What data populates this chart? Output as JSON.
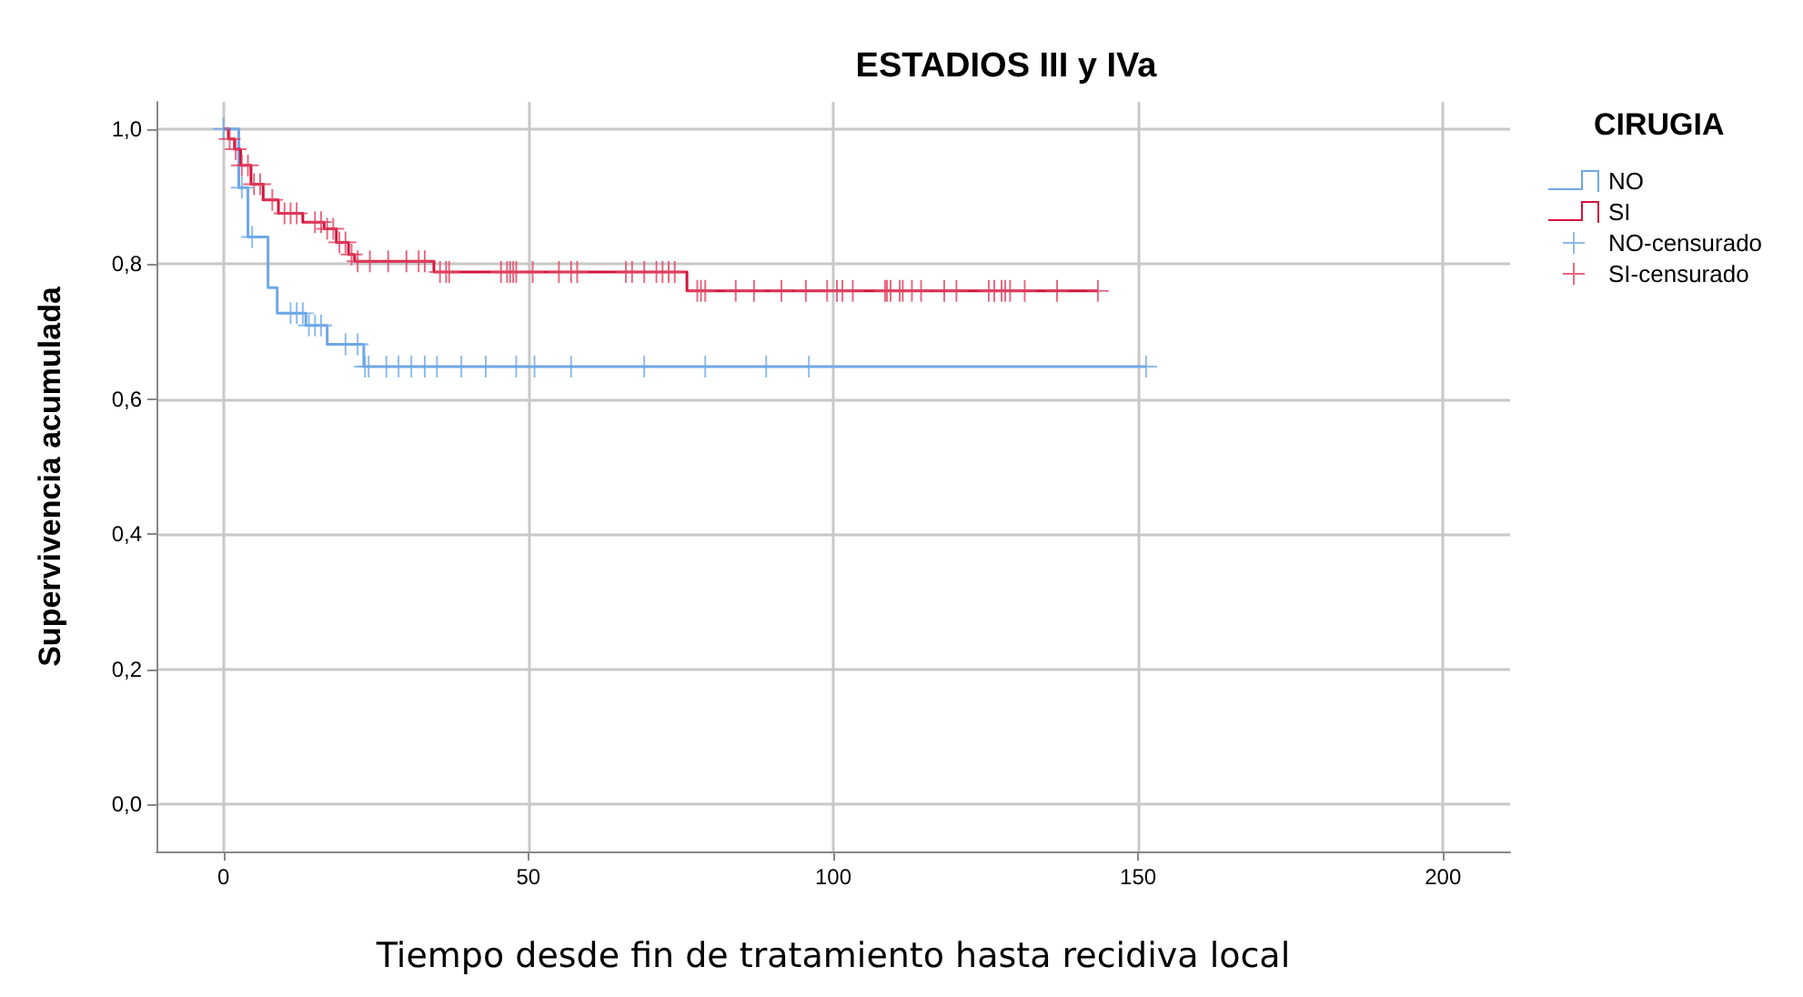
{
  "chart_data": {
    "type": "step",
    "title": "ESTADIOS III y IVa",
    "xlabel": "Tiempo desde fin de tratamiento hasta recidiva local",
    "ylabel": "Supervivencia acumulada",
    "legend_title": "CIRUGIA",
    "legend": "top right",
    "grid": true,
    "xlim": [
      -11,
      211
    ],
    "xticks": [
      0,
      50,
      100,
      150,
      200
    ],
    "ylim": [
      -0.07,
      1.04
    ],
    "yticks": [
      {
        "value": 0,
        "label": "0,0"
      },
      {
        "value": 0.2,
        "label": "0,2"
      },
      {
        "value": 0.4,
        "label": "0,4"
      },
      {
        "value": 0.6,
        "label": "0,6"
      },
      {
        "value": 0.8,
        "label": "0,8"
      },
      {
        "value": 1,
        "label": "1,0"
      }
    ],
    "series": [
      {
        "name": "NO",
        "color": "#6fa8e6",
        "marker": "none",
        "x": [
          0,
          2.5,
          4,
          7.3,
          8.8,
          13.5,
          17,
          23,
          151.3
        ],
        "values": [
          1,
          0.913,
          0.84,
          0.765,
          0.727,
          0.709,
          0.681,
          0.648,
          0.648
        ]
      },
      {
        "name": "SI",
        "color": "#d2143c",
        "marker": "none",
        "x": [
          0,
          0.8,
          1.8,
          2.8,
          4.5,
          6.5,
          9,
          13,
          16.5,
          18.5,
          20.5,
          21.5,
          34.5,
          76,
          143.4
        ],
        "values": [
          1,
          0.985,
          0.97,
          0.946,
          0.918,
          0.895,
          0.875,
          0.862,
          0.852,
          0.832,
          0.814,
          0.804,
          0.788,
          0.76,
          0.76
        ]
      },
      {
        "name": "NO-censurado",
        "type": "scatter",
        "color": "#6fa8e6",
        "marker": "cross",
        "x": [
          0,
          3,
          4.7,
          11,
          12,
          13,
          14,
          15,
          16,
          20,
          22,
          23.2,
          23.8,
          26.7,
          28.7,
          30.8,
          33,
          35,
          39,
          43,
          48,
          51,
          57,
          69,
          79,
          89,
          96,
          151.3
        ],
        "values": [
          1,
          0.913,
          0.84,
          0.727,
          0.727,
          0.727,
          0.709,
          0.709,
          0.709,
          0.681,
          0.681,
          0.648,
          0.648,
          0.648,
          0.648,
          0.648,
          0.648,
          0.648,
          0.648,
          0.648,
          0.648,
          0.648,
          0.648,
          0.648,
          0.648,
          0.648,
          0.648,
          0.648
        ]
      },
      {
        "name": "SI-censurado",
        "type": "scatter",
        "color": "#e0405f",
        "marker": "cross",
        "x": [
          1,
          2,
          3,
          4,
          5,
          6,
          8,
          10,
          11,
          12,
          15,
          16,
          17,
          18,
          19,
          20,
          21,
          22,
          24,
          27,
          30,
          32,
          33,
          35.5,
          36.5,
          37,
          45.5,
          46.5,
          47,
          47.5,
          48,
          50.7,
          55,
          57,
          58,
          66,
          67,
          69,
          71,
          72,
          73,
          74,
          77.7,
          78.3,
          79,
          84,
          87,
          91.5,
          95.5,
          99,
          100.6,
          101.5,
          103.2,
          108.5,
          108.8,
          109.4,
          110.9,
          111.4,
          112.9,
          114.4,
          118.2,
          120.2,
          125.5,
          126.4,
          127.6,
          128.2,
          129,
          131.4,
          136.7,
          143.4
        ],
        "values": [
          0.985,
          0.97,
          0.946,
          0.946,
          0.918,
          0.918,
          0.895,
          0.875,
          0.875,
          0.875,
          0.862,
          0.862,
          0.852,
          0.852,
          0.832,
          0.832,
          0.814,
          0.804,
          0.804,
          0.804,
          0.804,
          0.804,
          0.804,
          0.788,
          0.788,
          0.788,
          0.788,
          0.788,
          0.788,
          0.788,
          0.788,
          0.788,
          0.788,
          0.788,
          0.788,
          0.788,
          0.788,
          0.788,
          0.788,
          0.788,
          0.788,
          0.788,
          0.76,
          0.76,
          0.76,
          0.76,
          0.76,
          0.76,
          0.76,
          0.76,
          0.76,
          0.76,
          0.76,
          0.76,
          0.76,
          0.76,
          0.76,
          0.76,
          0.76,
          0.76,
          0.76,
          0.76,
          0.76,
          0.76,
          0.76,
          0.76,
          0.76,
          0.76,
          0.76,
          0.76
        ]
      }
    ]
  }
}
